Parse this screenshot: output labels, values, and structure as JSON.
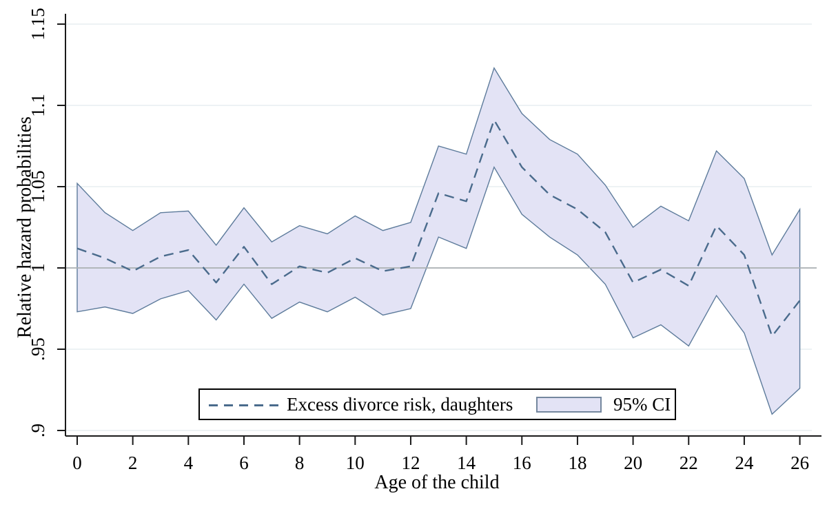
{
  "chart_data": {
    "type": "line",
    "title": "",
    "xlabel": "Age of the child",
    "ylabel": "Relative hazard probabilities",
    "xlim": [
      0,
      26
    ],
    "ylim": [
      0.9,
      1.15
    ],
    "grid": "horizontal",
    "reference_line_y": 1,
    "x_ticks": [
      0,
      2,
      4,
      6,
      8,
      10,
      12,
      14,
      16,
      18,
      20,
      22,
      24,
      26
    ],
    "y_ticks": [
      ".9",
      ".95",
      "1",
      "1.05",
      "1.1",
      "1.15"
    ],
    "y_tick_values": [
      0.9,
      0.95,
      1.0,
      1.05,
      1.1,
      1.15
    ],
    "x": [
      0,
      1,
      2,
      3,
      4,
      5,
      6,
      7,
      8,
      9,
      10,
      11,
      12,
      13,
      14,
      15,
      16,
      17,
      18,
      19,
      20,
      21,
      22,
      23,
      24,
      25,
      26
    ],
    "series": [
      {
        "name": "Excess divorce risk, daughters",
        "style": "dashed",
        "color": "#4a6b8c",
        "values": [
          1.012,
          1.006,
          0.998,
          1.007,
          1.011,
          0.991,
          1.013,
          0.99,
          1.001,
          0.997,
          1.006,
          0.998,
          1.001,
          1.046,
          1.041,
          1.091,
          1.062,
          1.045,
          1.036,
          1.022,
          0.991,
          0.999,
          0.989,
          1.026,
          1.008,
          0.958,
          0.98
        ]
      },
      {
        "name": "95% CI",
        "style": "band",
        "fill": "#e3e3f5",
        "stroke": "#5d7b9b",
        "upper": [
          1.052,
          1.034,
          1.023,
          1.034,
          1.035,
          1.014,
          1.037,
          1.016,
          1.026,
          1.021,
          1.032,
          1.023,
          1.028,
          1.075,
          1.07,
          1.123,
          1.095,
          1.079,
          1.07,
          1.051,
          1.025,
          1.038,
          1.029,
          1.072,
          1.055,
          1.008,
          1.036
        ],
        "lower": [
          0.973,
          0.976,
          0.972,
          0.981,
          0.986,
          0.968,
          0.99,
          0.969,
          0.979,
          0.973,
          0.982,
          0.971,
          0.975,
          1.019,
          1.012,
          1.062,
          1.033,
          1.019,
          1.008,
          0.99,
          0.957,
          0.965,
          0.952,
          0.983,
          0.96,
          0.91,
          0.926
        ]
      }
    ],
    "legend": {
      "position": "bottom-center",
      "entries": [
        "Excess divorce risk, daughters",
        "95% CI"
      ]
    },
    "colors": {
      "dashed_line": "#4a6b8c",
      "band_fill": "#e3e3f5",
      "band_stroke": "#5d7b9b",
      "gridline": "#e7edf0",
      "reference_line": "#abb0b4",
      "axis": "#1a1a1a",
      "text": "#000000"
    }
  },
  "legend": {
    "series_label": "Excess divorce risk, daughters",
    "ci_label": "95% CI"
  },
  "axes": {
    "x_title": "Age of the child",
    "y_title": "Relative hazard probabilities"
  }
}
